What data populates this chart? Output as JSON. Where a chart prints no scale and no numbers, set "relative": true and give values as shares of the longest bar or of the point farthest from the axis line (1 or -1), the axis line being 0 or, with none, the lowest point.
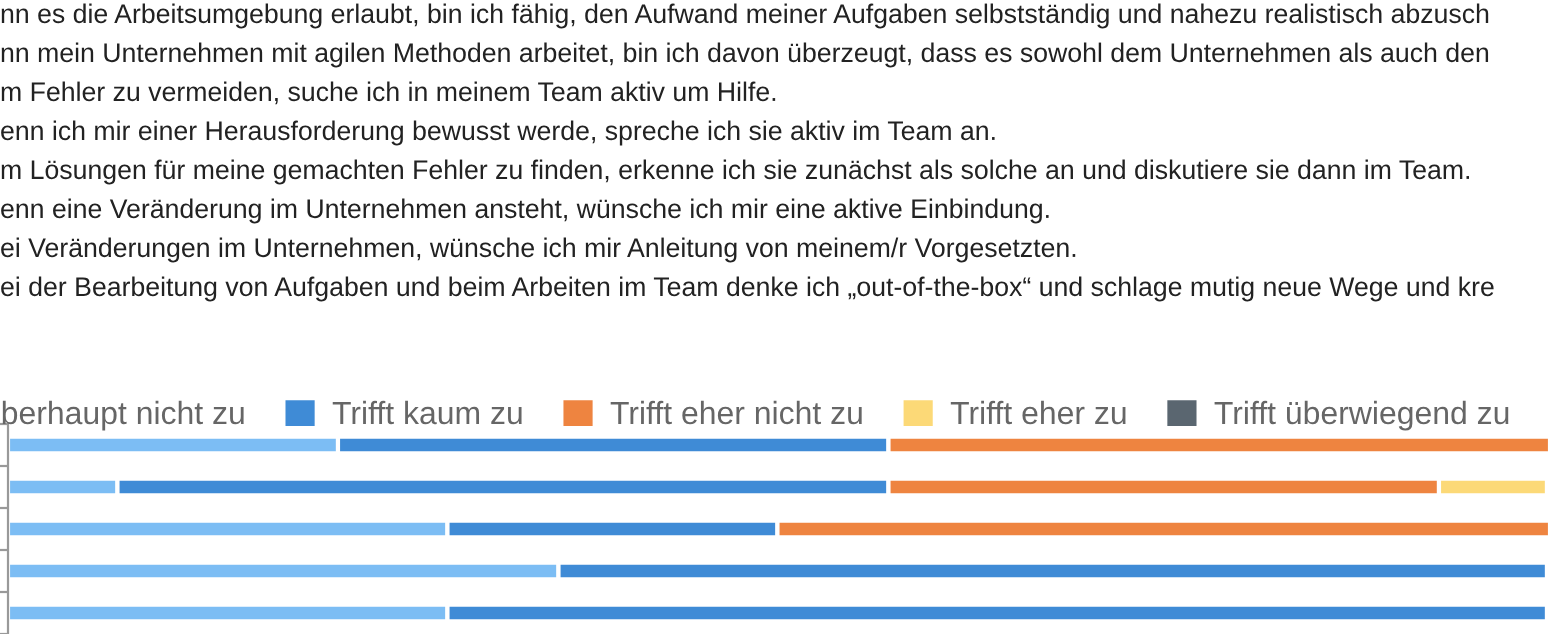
{
  "chart_data": {
    "type": "bar",
    "orientation": "horizontal",
    "stacked": true,
    "relative": true,
    "legend": "top",
    "categories": [
      null,
      null,
      null,
      null,
      null
    ],
    "series": [
      {
        "name": "berhaupt nicht zu",
        "color": "#7cbdf4",
        "values": [
          0.214,
          0.071,
          0.285,
          0.357,
          0.285
        ]
      },
      {
        "name": "Trifft kaum zu",
        "color": "#3f8bd6",
        "values": [
          0.357,
          0.5,
          0.214,
          0.641,
          0.713
        ]
      },
      {
        "name": "Trifft eher nicht zu",
        "color": "#ee8440",
        "values": [
          0.429,
          0.357,
          0.501,
          null,
          null
        ]
      },
      {
        "name": "Trifft eher zu",
        "color": "#fcd977",
        "values": [
          null,
          0.07,
          null,
          null,
          null
        ]
      },
      {
        "name": "Trifft überwiegend zu",
        "color": "#5a6670",
        "values": [
          null,
          null,
          null,
          null,
          null
        ]
      }
    ],
    "annotations": [
      "nn es die Arbeitsumgebung erlaubt, bin ich fähig, den Aufwand meiner Aufgaben selbstständig und nahezu realistisch abzusch",
      "nn mein Unternehmen mit agilen Methoden arbeitet, bin ich davon überzeugt, dass es sowohl dem Unternehmen als auch den",
      "m Fehler zu vermeiden, suche ich in meinem Team aktiv um Hilfe.",
      "enn ich mir einer Herausforderung bewusst werde, spreche ich sie aktiv im Team an.",
      "m Lösungen für meine gemachten Fehler zu finden, erkenne ich sie zunächst als solche an und diskutiere sie dann im Team.",
      "enn eine Veränderung im Unternehmen ansteht, wünsche ich mir eine aktive Einbindung.",
      "ei Veränderungen im Unternehmen, wünsche ich mir Anleitung von meinem/r Vorgesetzten.",
      "ei der Bearbeitung von Aufgaben und beim Arbeiten im Team denke ich „out-of-the-box“ und schlage mutig neue Wege und kre"
    ]
  }
}
